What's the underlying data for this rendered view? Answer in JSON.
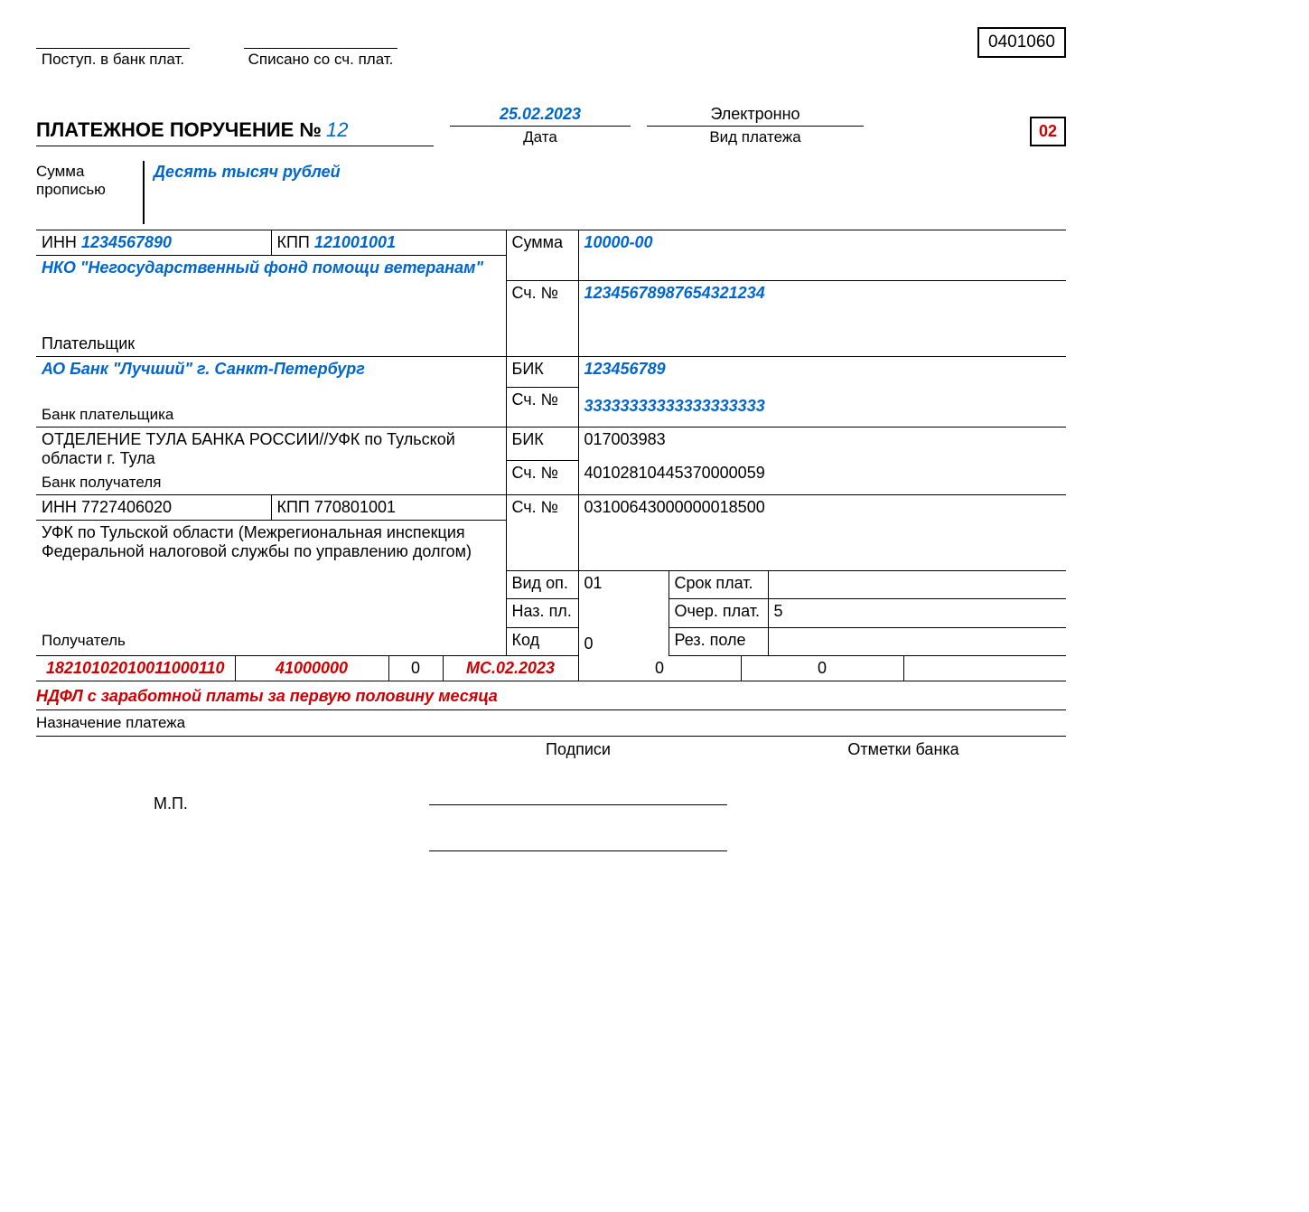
{
  "form_code": "0401060",
  "top": {
    "received_label": "Поступ. в банк плат.",
    "debited_label": "Списано со сч. плат."
  },
  "header": {
    "title_prefix": "ПЛАТЕЖНОЕ ПОРУЧЕНИЕ №",
    "number": "12",
    "date": "25.02.2023",
    "date_label": "Дата",
    "pay_type": "Электронно",
    "pay_type_label": "Вид платежа",
    "code02": "02"
  },
  "amount_words": {
    "label": "Сумма прописью",
    "value": "Десять тысяч рублей"
  },
  "payer": {
    "inn_label": "ИНН",
    "inn": "1234567890",
    "kpp_label": "КПП",
    "kpp": "121001001",
    "name": "НКО \"Негосударственный фонд помощи ветеранам\"",
    "payer_label": "Плательщик",
    "amount_label": "Сумма",
    "amount": "10000-00",
    "account_label": "Сч. №",
    "account": "12345678987654321234"
  },
  "payer_bank": {
    "name": "АО Банк \"Лучший\" г. Санкт-Петербург",
    "label": "Банк плательщика",
    "bik_label": "БИК",
    "bik": "123456789",
    "account_label": "Сч. №",
    "account": "33333333333333333333"
  },
  "recipient_bank": {
    "name": "ОТДЕЛЕНИЕ ТУЛА БАНКА РОССИИ//УФК по Тульской области г. Тула",
    "label": "Банк получателя",
    "bik_label": "БИК",
    "bik": "017003983",
    "account_label": "Сч. №",
    "account": "40102810445370000059"
  },
  "recipient": {
    "inn_label": "ИНН",
    "inn": "7727406020",
    "kpp_label": "КПП",
    "kpp": "770801001",
    "name": "УФК по Тульской области (Межрегиональная инспекция Федеральной налоговой службы по управлению долгом)",
    "label": "Получатель",
    "account_label": "Сч. №",
    "account": "03100643000000018500"
  },
  "ops": {
    "vid_op_label": "Вид оп.",
    "vid_op": "01",
    "naz_pl_label": "Наз. пл.",
    "kod_label": "Код",
    "kod": "0",
    "srok_label": "Срок плат.",
    "ocher_label": "Очер. плат.",
    "ocher": "5",
    "rez_label": "Рез. поле"
  },
  "codes_row": {
    "kbk": "18210102010011000110",
    "oktmo": "41000000",
    "c1": "0",
    "period": "МС.02.2023",
    "c2": "0",
    "c3": "0",
    "c4": ""
  },
  "purpose": {
    "text": "НДФЛ с заработной платы за первую половину месяца",
    "label": "Назначение платежа"
  },
  "signatures": {
    "sign_label": "Подписи",
    "bank_label": "Отметки банка",
    "mp": "М.П."
  },
  "colors": {
    "blue": "#0066cc",
    "red": "#cc0000",
    "black": "#000000",
    "background": "#ffffff"
  }
}
